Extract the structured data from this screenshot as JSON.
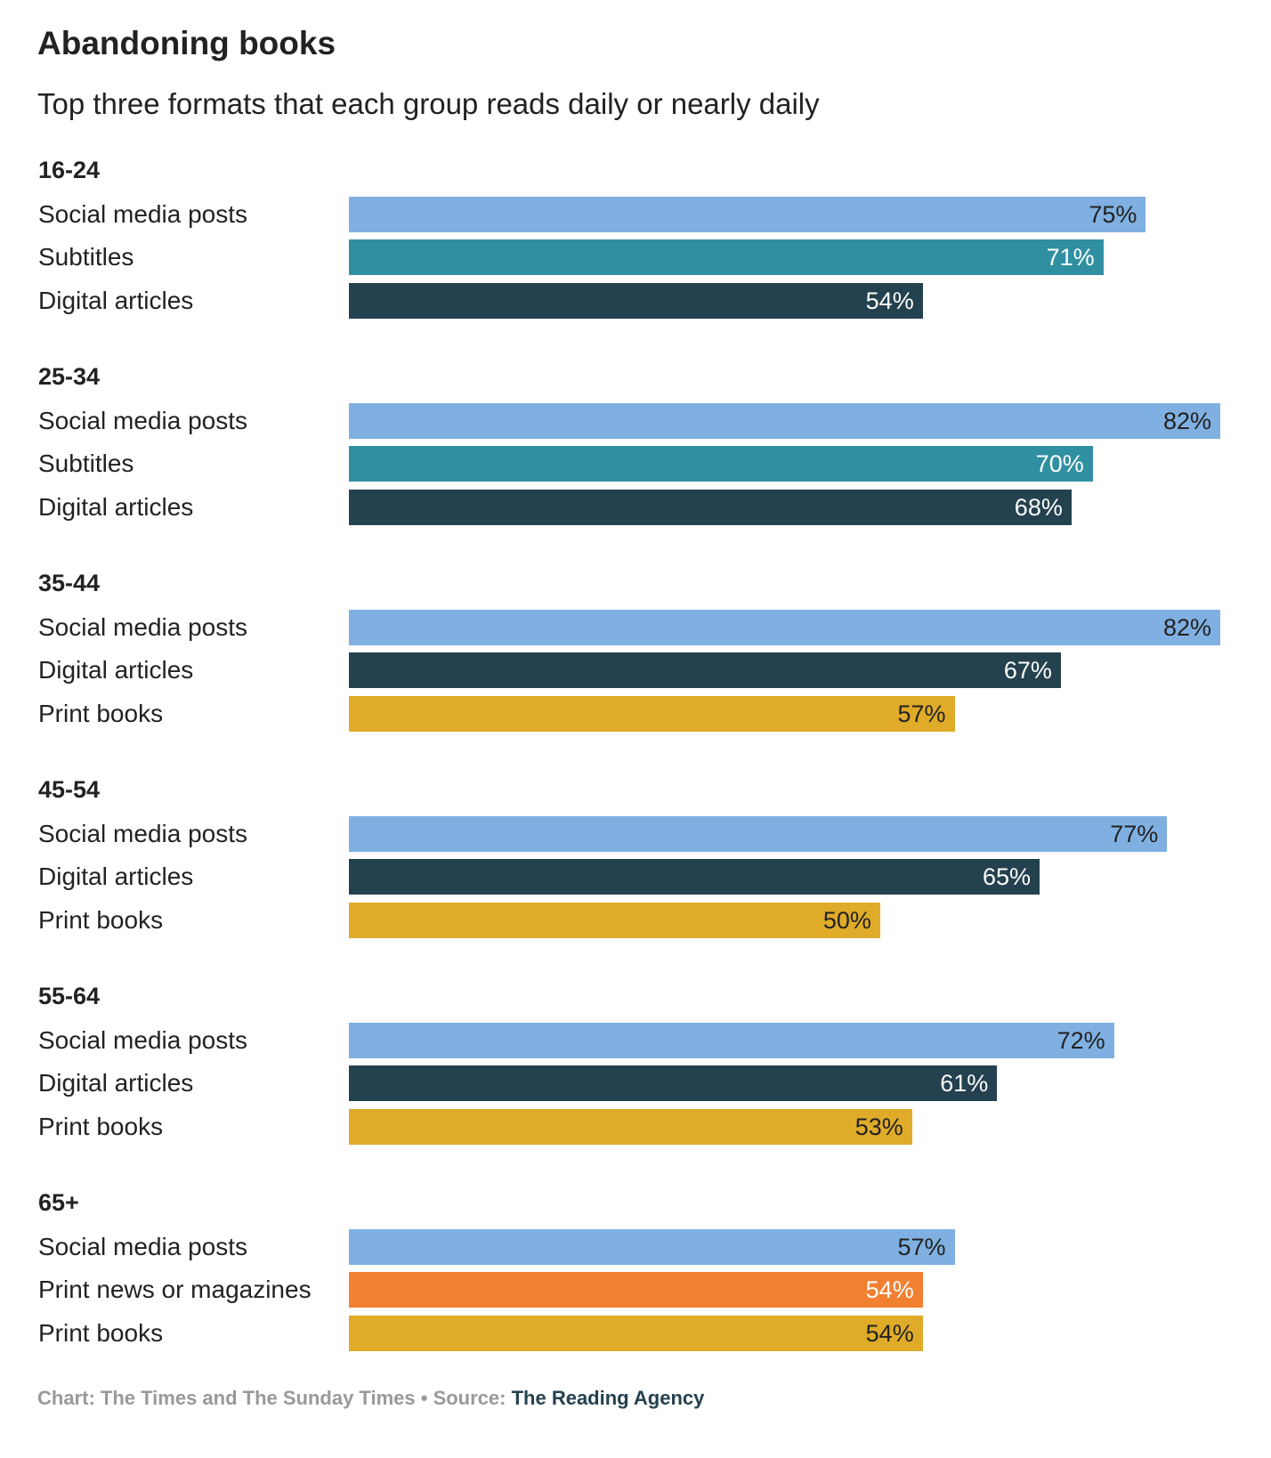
{
  "chart_data": {
    "type": "bar",
    "orientation": "horizontal",
    "title": "Abandoning books",
    "subtitle": "Top three formats that each group reads daily or nearly daily",
    "unit": "%",
    "xlim": [
      0,
      82
    ],
    "colors": {
      "Social media posts": "#7FB0E1",
      "Subtitles": "#3090A2",
      "Digital articles": "#24414F",
      "Print books": "#DFAB29",
      "Print news or magazines": "#F28031"
    },
    "value_text_dark": "#222222",
    "value_text_light": "#ffffff",
    "groups": [
      {
        "name": "16-24",
        "items": [
          {
            "label": "Social media posts",
            "value": 75,
            "display": "75%"
          },
          {
            "label": "Subtitles",
            "value": 71,
            "display": "71%"
          },
          {
            "label": "Digital articles",
            "value": 54,
            "display": "54%"
          }
        ]
      },
      {
        "name": "25-34",
        "items": [
          {
            "label": "Social media posts",
            "value": 82,
            "display": "82%"
          },
          {
            "label": "Subtitles",
            "value": 70,
            "display": "70%"
          },
          {
            "label": "Digital articles",
            "value": 68,
            "display": "68%"
          }
        ]
      },
      {
        "name": "35-44",
        "items": [
          {
            "label": "Social media posts",
            "value": 82,
            "display": "82%"
          },
          {
            "label": "Digital articles",
            "value": 67,
            "display": "67%"
          },
          {
            "label": "Print books",
            "value": 57,
            "display": "57%"
          }
        ]
      },
      {
        "name": "45-54",
        "items": [
          {
            "label": "Social media posts",
            "value": 77,
            "display": "77%"
          },
          {
            "label": "Digital articles",
            "value": 65,
            "display": "65%"
          },
          {
            "label": "Print books",
            "value": 50,
            "display": "50%"
          }
        ]
      },
      {
        "name": "55-64",
        "items": [
          {
            "label": "Social media posts",
            "value": 72,
            "display": "72%"
          },
          {
            "label": "Digital articles",
            "value": 61,
            "display": "61%"
          },
          {
            "label": "Print books",
            "value": 53,
            "display": "53%"
          }
        ]
      },
      {
        "name": "65+",
        "items": [
          {
            "label": "Social media posts",
            "value": 57,
            "display": "57%"
          },
          {
            "label": "Print news or magazines",
            "value": 54,
            "display": "54%"
          },
          {
            "label": "Print books",
            "value": 54,
            "display": "54%"
          }
        ]
      }
    ]
  },
  "footer": {
    "chart_credit": "Chart: The Times and The Sunday Times",
    "separator": " • ",
    "source_label": "Source: ",
    "source": "The Reading Agency"
  }
}
